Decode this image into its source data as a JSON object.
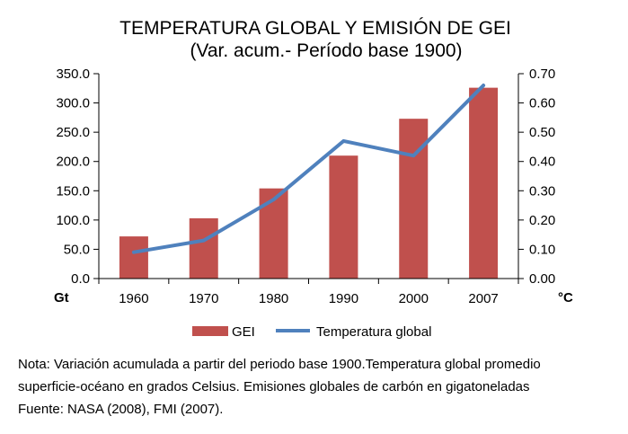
{
  "chart_data": {
    "type": "bar",
    "title": "TEMPERATURA GLOBAL Y EMISIÓN DE GEI",
    "subtitle": "(Var. acum.- Período base 1900)",
    "categories": [
      "1960",
      "1970",
      "1980",
      "1990",
      "2000",
      "2007"
    ],
    "series": [
      {
        "name": "GEI",
        "type": "bar",
        "axis": "left",
        "color": "#c0504d",
        "values": [
          72,
          103,
          154,
          210,
          273,
          326
        ]
      },
      {
        "name": "Temperatura global",
        "type": "line",
        "axis": "right",
        "color": "#4f81bd",
        "values": [
          0.09,
          0.13,
          0.27,
          0.47,
          0.42,
          0.66
        ]
      }
    ],
    "y_left": {
      "unit": "Gt",
      "ylim": [
        0,
        350
      ],
      "ticks": [
        "0.0",
        "50.0",
        "100.0",
        "150.0",
        "200.0",
        "250.0",
        "300.0",
        "350.0"
      ]
    },
    "y_right": {
      "unit": "°C",
      "ylim": [
        0,
        0.7
      ],
      "ticks": [
        "0.00",
        "0.10",
        "0.20",
        "0.30",
        "0.40",
        "0.50",
        "0.60",
        "0.70"
      ]
    },
    "grid": false,
    "legend": "bottom"
  },
  "notes": {
    "line1": "Nota: Variación acumulada a partir del periodo base 1900.Temperatura global promedio",
    "line2": "superficie-océano en grados Celsius. Emisiones globales de carbón en gigatoneladas",
    "line3": "Fuente: NASA (2008), FMI (2007)."
  }
}
